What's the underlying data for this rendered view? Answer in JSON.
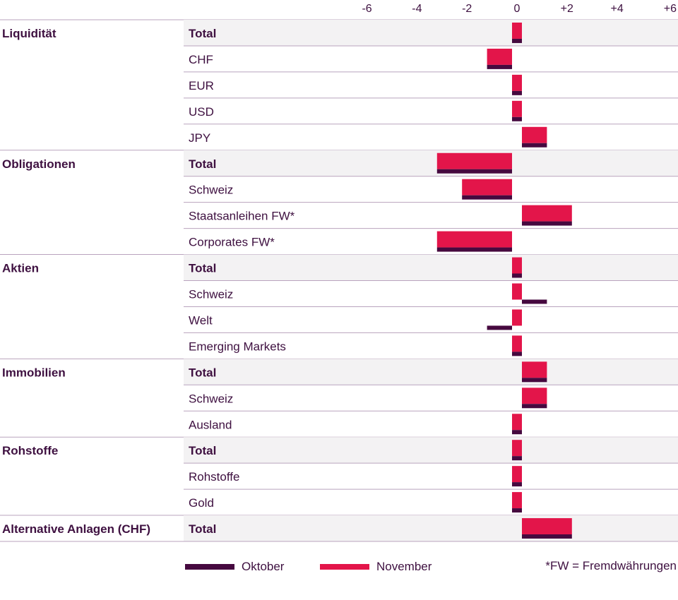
{
  "chart_data": {
    "type": "bar",
    "orientation": "horizontal",
    "xlim": [
      -6,
      6
    ],
    "xticks": [
      "-6",
      "-4",
      "-2",
      "0",
      "+2",
      "+4",
      "+6"
    ],
    "xtick_values": [
      -6,
      -4,
      -2,
      0,
      2,
      4,
      6
    ],
    "series": [
      {
        "name": "Oktober",
        "color": "#46093f"
      },
      {
        "name": "November",
        "color": "#e3154a"
      }
    ],
    "groups": [
      {
        "name": "Liquidität",
        "rows": [
          {
            "label": "Total",
            "bold": true,
            "oktober": 0,
            "november": 0
          },
          {
            "label": "CHF",
            "bold": false,
            "oktober": -1,
            "november": -1
          },
          {
            "label": "EUR",
            "bold": false,
            "oktober": 0,
            "november": 0
          },
          {
            "label": "USD",
            "bold": false,
            "oktober": 0,
            "november": 0
          },
          {
            "label": "JPY",
            "bold": false,
            "oktober": 1,
            "november": 1
          }
        ]
      },
      {
        "name": "Obligationen",
        "rows": [
          {
            "label": "Total",
            "bold": true,
            "oktober": -3,
            "november": -3
          },
          {
            "label": "Schweiz",
            "bold": false,
            "oktober": -2,
            "november": -2
          },
          {
            "label": "Staatsanleihen FW*",
            "bold": false,
            "oktober": 2,
            "november": 2
          },
          {
            "label": "Corporates FW*",
            "bold": false,
            "oktober": -3,
            "november": -3
          }
        ]
      },
      {
        "name": "Aktien",
        "rows": [
          {
            "label": "Total",
            "bold": true,
            "oktober": 0,
            "november": 0
          },
          {
            "label": "Schweiz",
            "bold": false,
            "oktober": 1,
            "november": 0
          },
          {
            "label": "Welt",
            "bold": false,
            "oktober": -1,
            "november": 0
          },
          {
            "label": "Emerging Markets",
            "bold": false,
            "oktober": 0,
            "november": 0
          }
        ]
      },
      {
        "name": "Immobilien",
        "rows": [
          {
            "label": "Total",
            "bold": true,
            "oktober": 1,
            "november": 1
          },
          {
            "label": "Schweiz",
            "bold": false,
            "oktober": 1,
            "november": 1
          },
          {
            "label": "Ausland",
            "bold": false,
            "oktober": 0,
            "november": 0
          }
        ]
      },
      {
        "name": "Rohstoffe",
        "rows": [
          {
            "label": "Total",
            "bold": true,
            "oktober": 0,
            "november": 0
          },
          {
            "label": "Rohstoffe",
            "bold": false,
            "oktober": 0,
            "november": 0
          },
          {
            "label": "Gold",
            "bold": false,
            "oktober": 0,
            "november": 0
          }
        ]
      },
      {
        "name": "Alternative Anlagen (CHF)",
        "rows": [
          {
            "label": "Total",
            "bold": true,
            "oktober": 2,
            "november": 2
          }
        ]
      }
    ],
    "footnote": "*FW = Fremdwährungen"
  }
}
